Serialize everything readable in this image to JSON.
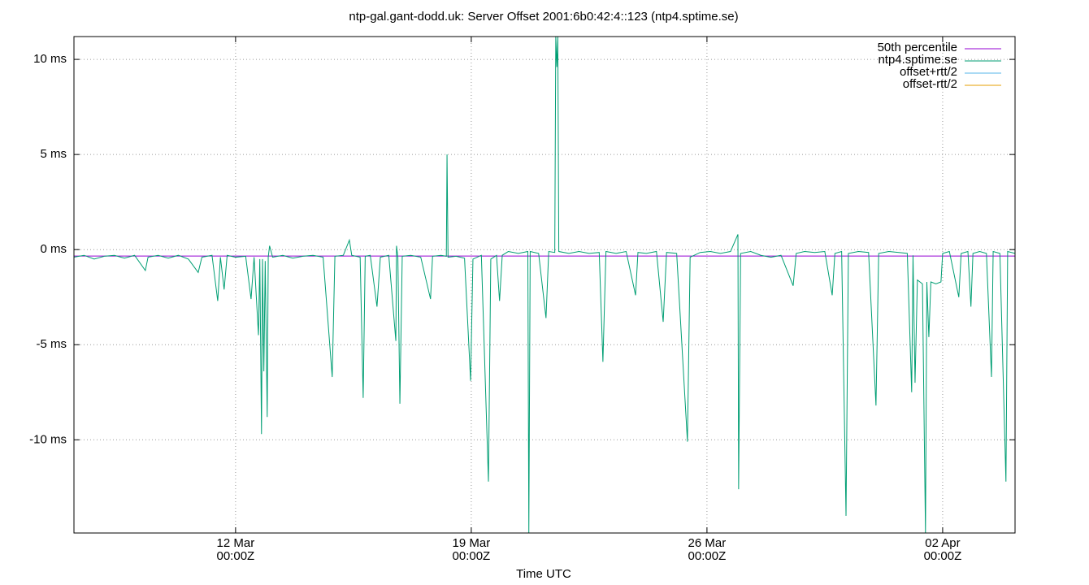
{
  "chart_data": {
    "type": "line",
    "title": "ntp-gal.gant-dodd.uk: Server Offset 2001:6b0:42:4::123 (ntp4.sptime.se)",
    "xlabel": "Time UTC",
    "xlim": [
      7.2,
      35.15
    ],
    "xticks": [
      {
        "value": 12,
        "label": "12 Mar\n00:00Z"
      },
      {
        "value": 19,
        "label": "19 Mar\n00:00Z"
      },
      {
        "value": 26,
        "label": "26 Mar\n00:00Z"
      },
      {
        "value": 33,
        "label": "02 Apr\n00:00Z"
      }
    ],
    "ylim": [
      -14.9,
      11.2
    ],
    "yticks": [
      {
        "value": -10,
        "label": "-10 ms"
      },
      {
        "value": -5,
        "label": "-5 ms"
      },
      {
        "value": 0,
        "label": "0 ms"
      },
      {
        "value": 5,
        "label": "5 ms"
      },
      {
        "value": 10,
        "label": "10 ms"
      }
    ],
    "grid": true,
    "legend": "top-right",
    "series": [
      {
        "name": "50th percentile",
        "color": "#9400d3",
        "x": [
          7.2,
          35.15
        ],
        "values": [
          -0.34,
          -0.34
        ]
      },
      {
        "name": "ntp4.sptime.se",
        "color": "#009e73",
        "x": [
          7.2,
          7.5,
          7.8,
          8.1,
          8.4,
          8.7,
          9.0,
          9.32,
          9.4,
          9.7,
          10.0,
          10.3,
          10.6,
          10.89,
          11.0,
          11.3,
          11.47,
          11.55,
          11.66,
          11.75,
          12.0,
          12.3,
          12.46,
          12.55,
          12.68,
          12.72,
          12.77,
          12.8,
          12.84,
          12.88,
          12.94,
          12.97,
          13.01,
          13.1,
          13.4,
          13.7,
          14.0,
          14.3,
          14.6,
          14.87,
          14.95,
          15.2,
          15.38,
          15.45,
          15.7,
          15.79,
          15.85,
          16.0,
          16.2,
          16.3,
          16.55,
          16.76,
          16.78,
          16.82,
          16.88,
          16.95,
          17.2,
          17.5,
          17.79,
          17.85,
          18.1,
          18.26,
          18.28,
          18.31,
          18.55,
          18.8,
          18.98,
          19.05,
          19.3,
          19.51,
          19.58,
          19.75,
          19.84,
          19.92,
          20.1,
          20.4,
          20.68,
          20.71,
          20.75,
          21.0,
          21.22,
          21.3,
          21.48,
          21.51,
          21.54,
          21.57,
          21.6,
          21.9,
          22.2,
          22.5,
          22.8,
          22.91,
          23.0,
          23.3,
          23.6,
          23.88,
          23.95,
          24.2,
          24.5,
          24.7,
          24.8,
          25.1,
          25.42,
          25.5,
          25.8,
          26.1,
          26.4,
          26.7,
          26.92,
          26.94,
          27.0,
          27.3,
          27.6,
          27.9,
          28.2,
          28.56,
          28.65,
          28.9,
          29.2,
          29.5,
          29.72,
          29.8,
          30.0,
          30.13,
          30.2,
          30.5,
          30.8,
          31.02,
          31.1,
          31.4,
          31.7,
          31.95,
          32.08,
          32.12,
          32.18,
          32.25,
          32.4,
          32.49,
          32.53,
          32.59,
          32.65,
          32.8,
          32.95,
          33.0,
          33.2,
          33.48,
          33.55,
          33.75,
          33.84,
          33.9,
          34.1,
          34.3,
          34.45,
          34.5,
          34.7,
          34.88,
          34.93,
          35.15
        ],
        "values": [
          -0.4,
          -0.3,
          -0.5,
          -0.35,
          -0.3,
          -0.45,
          -0.3,
          -1.1,
          -0.4,
          -0.3,
          -0.45,
          -0.3,
          -0.5,
          -1.2,
          -0.4,
          -0.3,
          -2.7,
          -0.4,
          -2.1,
          -0.3,
          -0.4,
          -0.35,
          -2.6,
          -0.4,
          -4.5,
          -0.5,
          -9.7,
          -0.5,
          -6.4,
          -0.6,
          -8.8,
          -0.4,
          0.2,
          -0.4,
          -0.3,
          -0.45,
          -0.35,
          -0.3,
          -0.4,
          -6.7,
          -0.35,
          -0.3,
          0.5,
          -0.3,
          -0.4,
          -7.8,
          -0.35,
          -0.3,
          -3.0,
          -0.4,
          -0.3,
          -4.8,
          0.2,
          -0.4,
          -8.1,
          -0.35,
          -0.3,
          -0.4,
          -2.6,
          -0.35,
          -0.3,
          -0.35,
          5.0,
          -0.4,
          -0.35,
          -0.45,
          -6.9,
          -0.5,
          -0.3,
          -12.2,
          -0.5,
          -0.3,
          -2.7,
          -0.3,
          -0.1,
          -0.2,
          -0.1,
          -14.9,
          -0.1,
          -0.2,
          -3.6,
          -0.1,
          -0.15,
          11.2,
          9.6,
          11.2,
          -0.1,
          -0.2,
          -0.1,
          -0.2,
          -0.15,
          -5.9,
          -0.1,
          -0.2,
          -0.1,
          -2.4,
          -0.15,
          -0.2,
          -0.1,
          -3.8,
          -0.15,
          -0.2,
          -10.1,
          -0.4,
          -0.15,
          -0.1,
          -0.2,
          -0.1,
          0.8,
          -12.6,
          -0.2,
          -0.1,
          -0.3,
          -0.4,
          -0.3,
          -1.9,
          -0.2,
          -0.1,
          -0.15,
          -0.1,
          -2.4,
          -0.2,
          -0.1,
          -14.0,
          -0.2,
          -0.1,
          -0.15,
          -8.2,
          -0.2,
          -0.1,
          -0.15,
          -0.2,
          -7.5,
          -0.3,
          -7.0,
          -1.6,
          -1.8,
          -14.9,
          -1.7,
          -4.6,
          -1.7,
          -1.8,
          -1.7,
          -0.2,
          -0.1,
          -2.5,
          -0.2,
          -0.1,
          -3.0,
          -0.2,
          -0.1,
          -0.2,
          -6.7,
          -0.1,
          -0.2,
          -12.2,
          -0.1,
          -0.2
        ]
      },
      {
        "name": "offset+rtt/2",
        "color": "#56b4e9"
      },
      {
        "name": "offset-rtt/2",
        "color": "#e69f00"
      }
    ]
  }
}
